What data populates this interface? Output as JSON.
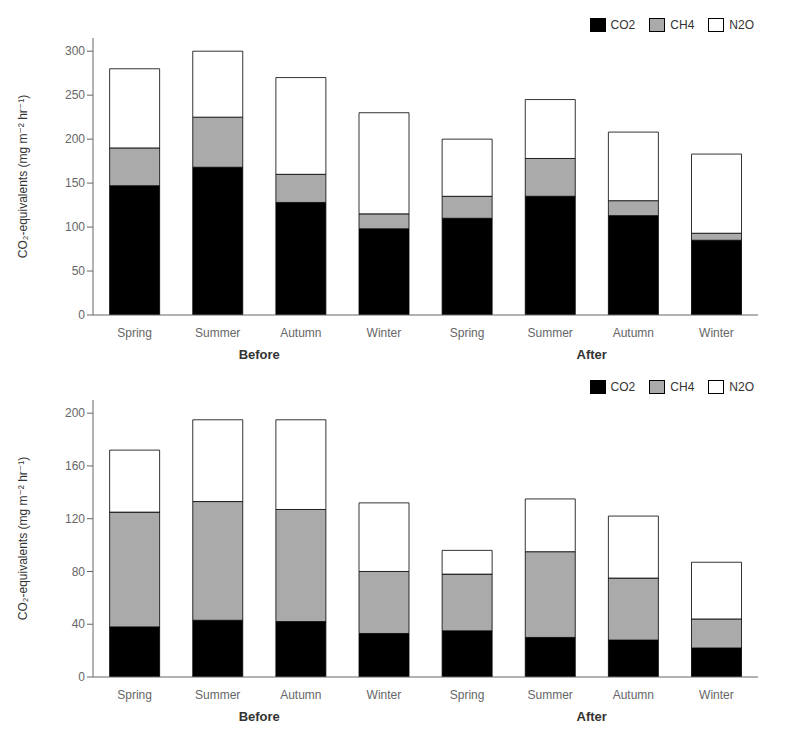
{
  "chart_data": [
    {
      "type": "bar",
      "stacked": true,
      "grid": false,
      "legend": "upper right",
      "ylabel": "CO₂-equivalents (mg m⁻² hr⁻¹)",
      "annotations": [
        "Before",
        "After"
      ],
      "categories": [
        "Spring",
        "Summer",
        "Autumn",
        "Winter",
        "Spring",
        "Summer",
        "Autumn",
        "Winter"
      ],
      "series": [
        {
          "name": "CO2",
          "color": "#000000",
          "values": [
            147,
            168,
            128,
            98,
            110,
            135,
            113,
            85
          ]
        },
        {
          "name": "CH4",
          "color": "#aaaaaa",
          "values": [
            43,
            57,
            32,
            17,
            25,
            43,
            17,
            8
          ]
        },
        {
          "name": "N2O",
          "color": "#ffffff",
          "values": [
            90,
            75,
            110,
            115,
            65,
            67,
            78,
            90
          ]
        }
      ],
      "ylim": [
        0,
        315
      ],
      "yticks": [
        0,
        50,
        100,
        150,
        200,
        250,
        300
      ]
    },
    {
      "type": "bar",
      "stacked": true,
      "grid": false,
      "legend": "upper right",
      "ylabel": "CO₂-equivalents (mg m⁻² hr⁻¹)",
      "annotations": [
        "Before",
        "After"
      ],
      "categories": [
        "Spring",
        "Summer",
        "Autumn",
        "Winter",
        "Spring",
        "Summer",
        "Autumn",
        "Winter"
      ],
      "series": [
        {
          "name": "CO2",
          "color": "#000000",
          "values": [
            38,
            43,
            42,
            33,
            35,
            30,
            28,
            22
          ]
        },
        {
          "name": "CH4",
          "color": "#aaaaaa",
          "values": [
            87,
            90,
            85,
            47,
            43,
            65,
            47,
            22
          ]
        },
        {
          "name": "N2O",
          "color": "#ffffff",
          "values": [
            47,
            62,
            68,
            52,
            18,
            40,
            47,
            43
          ]
        }
      ],
      "ylim": [
        0,
        210
      ],
      "yticks": [
        0,
        40,
        80,
        120,
        160,
        200
      ]
    }
  ]
}
